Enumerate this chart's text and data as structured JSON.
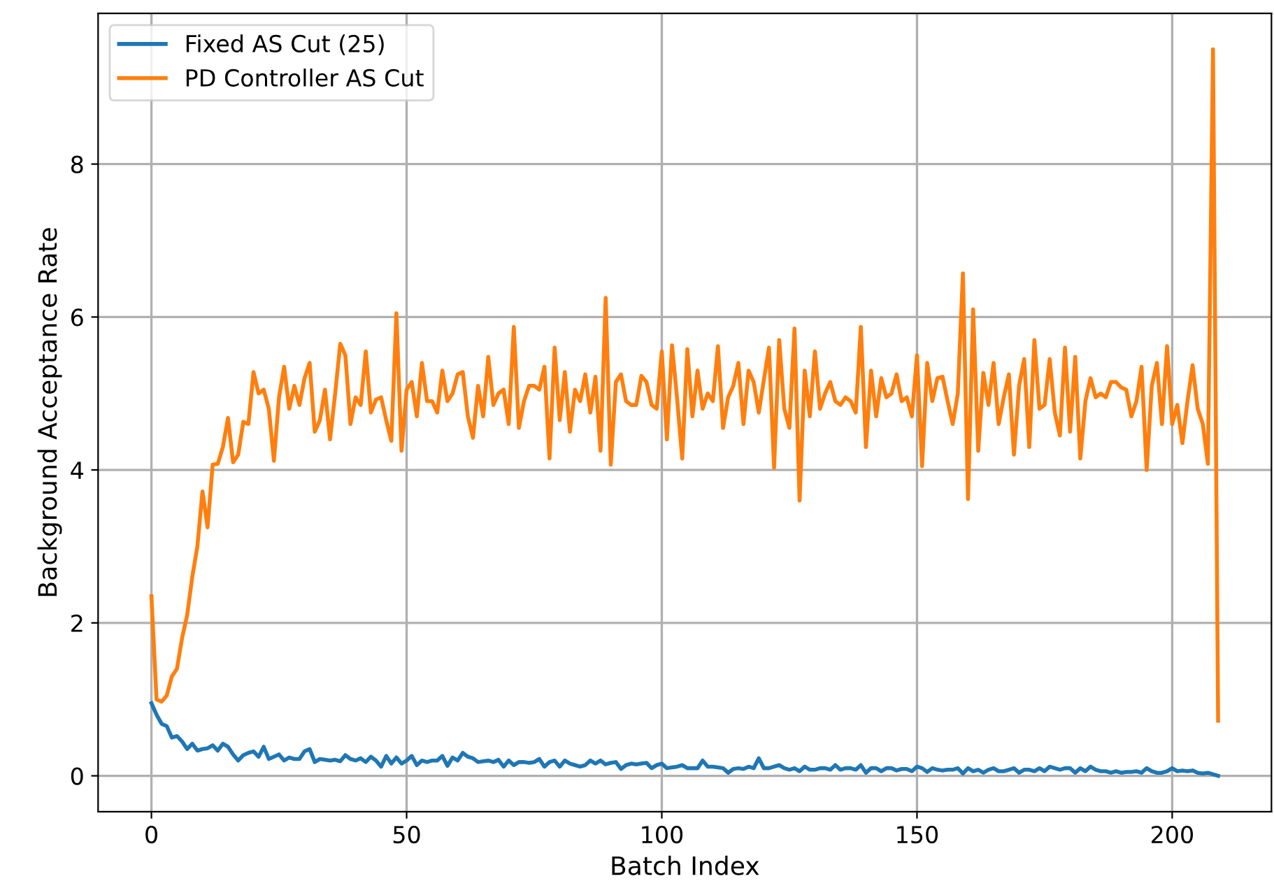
{
  "chart_data": {
    "type": "line",
    "xlabel": "Batch Index",
    "ylabel": "Background Acceptance Rate",
    "x": [
      0,
      1,
      2,
      3,
      4,
      5,
      6,
      7,
      8,
      9,
      10,
      11,
      12,
      13,
      14,
      15,
      16,
      17,
      18,
      19,
      20,
      21,
      22,
      23,
      24,
      25,
      26,
      27,
      28,
      29,
      30,
      31,
      32,
      33,
      34,
      35,
      36,
      37,
      38,
      39,
      40,
      41,
      42,
      43,
      44,
      45,
      46,
      47,
      48,
      49,
      50,
      51,
      52,
      53,
      54,
      55,
      56,
      57,
      58,
      59,
      60,
      61,
      62,
      63,
      64,
      65,
      66,
      67,
      68,
      69,
      70,
      71,
      72,
      73,
      74,
      75,
      76,
      77,
      78,
      79,
      80,
      81,
      82,
      83,
      84,
      85,
      86,
      87,
      88,
      89,
      90,
      91,
      92,
      93,
      94,
      95,
      96,
      97,
      98,
      99,
      100,
      101,
      102,
      103,
      104,
      105,
      106,
      107,
      108,
      109,
      110,
      111,
      112,
      113,
      114,
      115,
      116,
      117,
      118,
      119,
      120,
      121,
      122,
      123,
      124,
      125,
      126,
      127,
      128,
      129,
      130,
      131,
      132,
      133,
      134,
      135,
      136,
      137,
      138,
      139,
      140,
      141,
      142,
      143,
      144,
      145,
      146,
      147,
      148,
      149,
      150,
      151,
      152,
      153,
      154,
      155,
      156,
      157,
      158,
      159,
      160,
      161,
      162,
      163,
      164,
      165,
      166,
      167,
      168,
      169,
      170,
      171,
      172,
      173,
      174,
      175,
      176,
      177,
      178,
      179,
      180,
      181,
      182,
      183,
      184,
      185,
      186,
      187,
      188,
      189,
      190,
      191,
      192,
      193,
      194,
      195,
      196,
      197,
      198,
      199,
      200,
      201,
      202,
      203,
      204,
      205,
      206,
      207,
      208,
      209
    ],
    "series": [
      {
        "name": "Fixed AS Cut (25)",
        "color": "#1f77b4",
        "values": [
          0.95,
          0.8,
          0.68,
          0.65,
          0.5,
          0.52,
          0.45,
          0.35,
          0.42,
          0.33,
          0.35,
          0.36,
          0.4,
          0.33,
          0.42,
          0.38,
          0.28,
          0.2,
          0.27,
          0.3,
          0.32,
          0.25,
          0.38,
          0.22,
          0.25,
          0.28,
          0.2,
          0.24,
          0.22,
          0.22,
          0.32,
          0.35,
          0.18,
          0.22,
          0.21,
          0.2,
          0.21,
          0.19,
          0.27,
          0.22,
          0.2,
          0.23,
          0.18,
          0.25,
          0.2,
          0.12,
          0.26,
          0.16,
          0.24,
          0.16,
          0.2,
          0.26,
          0.14,
          0.2,
          0.18,
          0.2,
          0.2,
          0.26,
          0.13,
          0.24,
          0.2,
          0.3,
          0.25,
          0.23,
          0.18,
          0.19,
          0.2,
          0.18,
          0.21,
          0.12,
          0.2,
          0.14,
          0.18,
          0.18,
          0.17,
          0.18,
          0.22,
          0.12,
          0.18,
          0.2,
          0.12,
          0.2,
          0.16,
          0.14,
          0.12,
          0.14,
          0.2,
          0.16,
          0.2,
          0.15,
          0.17,
          0.18,
          0.09,
          0.14,
          0.16,
          0.15,
          0.16,
          0.17,
          0.1,
          0.14,
          0.16,
          0.1,
          0.11,
          0.12,
          0.14,
          0.1,
          0.1,
          0.1,
          0.2,
          0.12,
          0.12,
          0.11,
          0.1,
          0.04,
          0.09,
          0.1,
          0.09,
          0.12,
          0.1,
          0.23,
          0.1,
          0.1,
          0.12,
          0.14,
          0.1,
          0.08,
          0.1,
          0.06,
          0.12,
          0.08,
          0.08,
          0.1,
          0.1,
          0.08,
          0.14,
          0.08,
          0.1,
          0.1,
          0.08,
          0.14,
          0.04,
          0.1,
          0.1,
          0.06,
          0.1,
          0.1,
          0.07,
          0.09,
          0.09,
          0.06,
          0.12,
          0.1,
          0.05,
          0.1,
          0.08,
          0.07,
          0.08,
          0.08,
          0.1,
          0.03,
          0.1,
          0.06,
          0.08,
          0.04,
          0.08,
          0.1,
          0.06,
          0.06,
          0.08,
          0.1,
          0.04,
          0.08,
          0.08,
          0.06,
          0.1,
          0.06,
          0.12,
          0.1,
          0.08,
          0.1,
          0.1,
          0.04,
          0.1,
          0.06,
          0.12,
          0.08,
          0.06,
          0.06,
          0.04,
          0.06,
          0.04,
          0.05,
          0.05,
          0.06,
          0.04,
          0.1,
          0.06,
          0.04,
          0.04,
          0.06,
          0.1,
          0.06,
          0.07,
          0.06,
          0.07,
          0.04,
          0.03,
          0.04,
          0.02,
          0.0
        ]
      },
      {
        "name": "PD Controller AS Cut",
        "color": "#ff7f0e",
        "values": [
          2.35,
          1.0,
          0.97,
          1.05,
          1.3,
          1.4,
          1.8,
          2.1,
          2.6,
          3.0,
          3.72,
          3.25,
          4.07,
          4.08,
          4.3,
          4.68,
          4.1,
          4.2,
          4.63,
          4.6,
          5.28,
          5.0,
          5.05,
          4.8,
          4.12,
          4.95,
          5.35,
          4.8,
          5.1,
          4.85,
          5.2,
          5.4,
          4.5,
          4.65,
          5.05,
          4.4,
          5.0,
          5.65,
          5.5,
          4.6,
          4.95,
          4.85,
          5.55,
          4.75,
          4.92,
          4.95,
          4.65,
          4.38,
          6.05,
          4.25,
          5.05,
          5.15,
          4.7,
          5.4,
          4.9,
          4.9,
          4.75,
          5.3,
          4.9,
          5.0,
          5.25,
          5.28,
          4.7,
          4.42,
          5.1,
          4.7,
          5.48,
          4.85,
          5.0,
          5.05,
          4.6,
          5.87,
          4.55,
          4.9,
          5.1,
          5.1,
          5.05,
          5.35,
          4.15,
          5.6,
          4.65,
          5.28,
          4.5,
          5.05,
          4.9,
          5.25,
          4.75,
          5.22,
          4.25,
          6.25,
          4.07,
          5.15,
          5.25,
          4.9,
          4.85,
          4.85,
          5.23,
          5.15,
          4.85,
          4.8,
          5.55,
          4.4,
          5.63,
          4.93,
          4.15,
          5.58,
          4.7,
          5.3,
          4.8,
          5.0,
          4.9,
          5.62,
          4.55,
          4.95,
          5.1,
          5.4,
          4.6,
          5.3,
          5.15,
          4.75,
          5.18,
          5.6,
          4.03,
          5.7,
          4.8,
          4.55,
          5.85,
          3.6,
          5.3,
          4.7,
          5.55,
          4.8,
          5.0,
          5.15,
          4.9,
          4.85,
          4.95,
          4.9,
          4.75,
          5.87,
          4.3,
          5.3,
          4.7,
          5.2,
          4.95,
          5.0,
          5.25,
          4.9,
          4.95,
          4.7,
          5.5,
          4.05,
          5.4,
          4.9,
          5.2,
          5.22,
          4.9,
          4.6,
          5.0,
          6.57,
          3.62,
          6.1,
          4.25,
          5.27,
          4.85,
          5.4,
          4.6,
          4.95,
          5.25,
          4.2,
          5.1,
          5.45,
          4.3,
          5.7,
          4.8,
          4.85,
          5.45,
          4.75,
          4.45,
          5.6,
          4.5,
          5.48,
          4.15,
          4.9,
          5.2,
          4.95,
          5.0,
          4.95,
          5.15,
          5.15,
          5.08,
          5.05,
          4.7,
          4.9,
          5.35,
          4.0,
          5.1,
          5.4,
          4.6,
          5.62,
          4.6,
          4.85,
          4.35,
          4.9,
          5.37,
          4.8,
          4.6,
          4.08,
          9.5,
          0.72
        ]
      }
    ],
    "xlim": [
      -10.45,
      219.45
    ],
    "ylim": [
      -0.47,
      9.97
    ],
    "xticks": [
      0,
      50,
      100,
      150,
      200
    ],
    "yticks": [
      0,
      2,
      4,
      6,
      8
    ],
    "grid": true,
    "legend": "top left",
    "line_style": "solid",
    "marker": "none"
  }
}
